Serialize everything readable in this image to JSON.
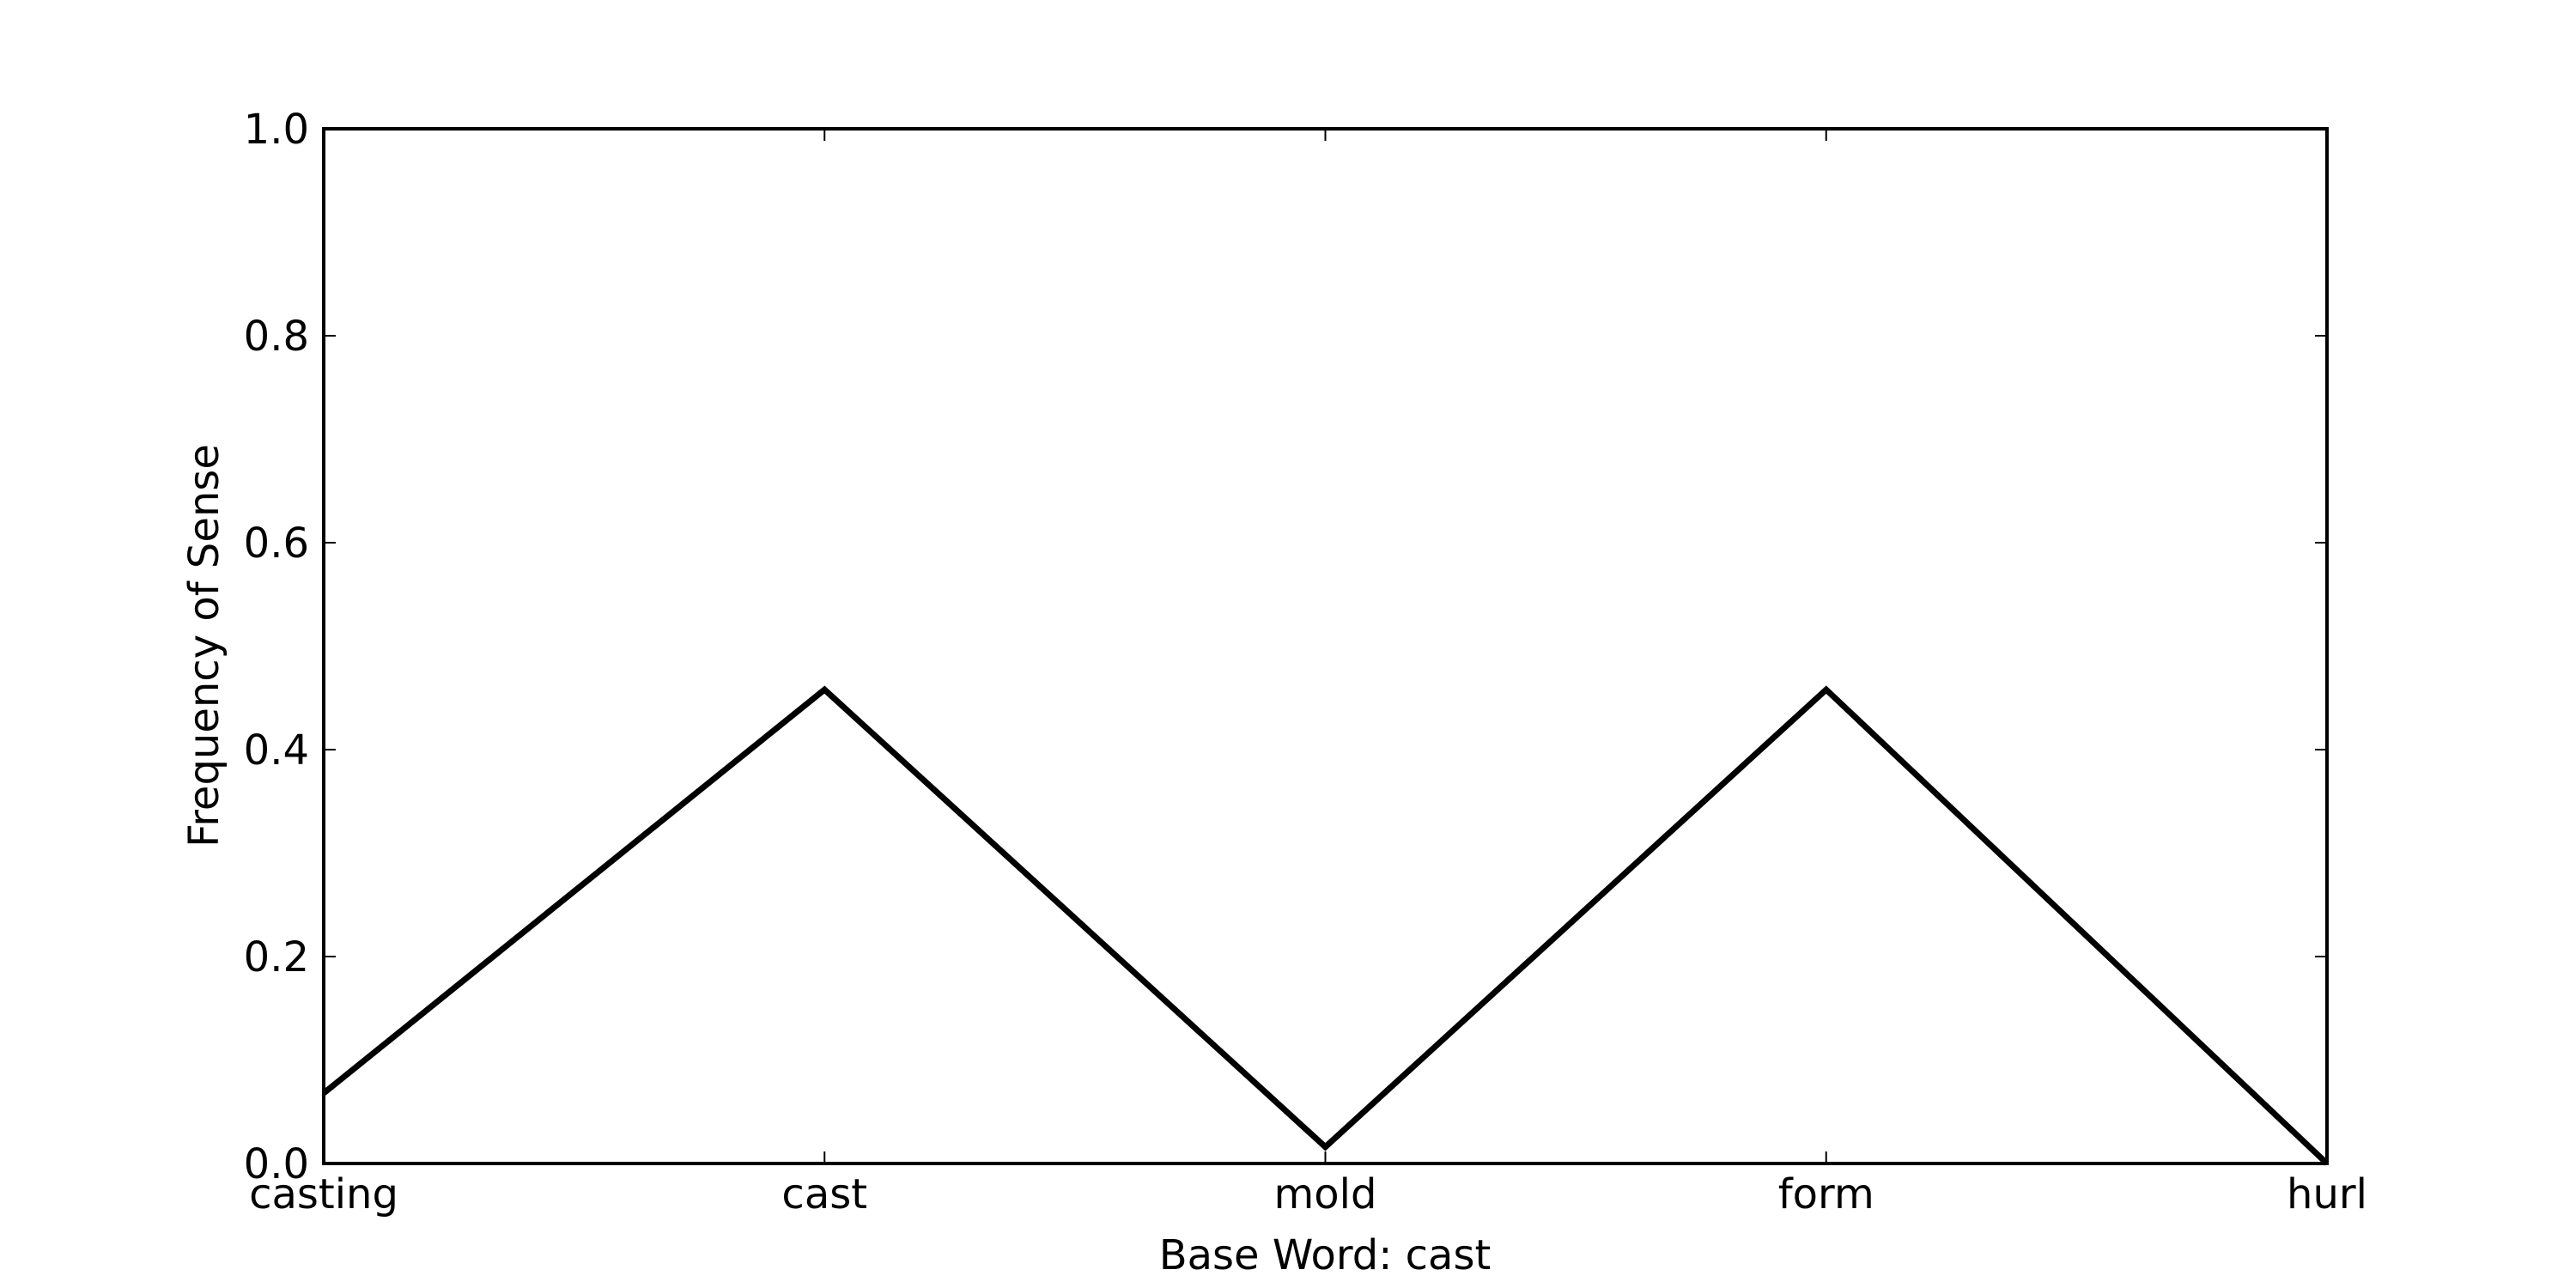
{
  "chart_data": {
    "type": "line",
    "title": "",
    "xlabel": "Base Word: cast",
    "ylabel": "Frequency of Sense",
    "categories": [
      "casting",
      "cast",
      "mold",
      "form",
      "hurl"
    ],
    "series": [
      {
        "values": [
          0.068,
          0.458,
          0.016,
          0.458,
          0.0
        ]
      }
    ],
    "ylim": [
      0.0,
      1.0
    ],
    "yticks": [
      "0.0",
      "0.2",
      "0.4",
      "0.6",
      "0.8",
      "1.0"
    ],
    "grid": false,
    "line_color": "#000000"
  }
}
